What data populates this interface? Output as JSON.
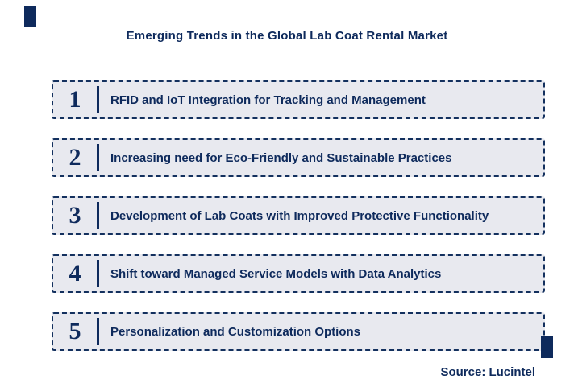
{
  "title": "Emerging Trends in the Global Lab Coat Rental Market",
  "rows": [
    {
      "num": "1",
      "label": "RFID and IoT Integration for Tracking and Management"
    },
    {
      "num": "2",
      "label": "Increasing need for Eco-Friendly and Sustainable Practices"
    },
    {
      "num": "3",
      "label": "Development of Lab Coats with Improved Protective Functionality"
    },
    {
      "num": "4",
      "label": "Shift toward Managed Service Models with Data Analytics"
    },
    {
      "num": "5",
      "label": "Personalization and Customization Options"
    }
  ],
  "source": "Source: Lucintel",
  "colors": {
    "navy": "#0e2a5c",
    "box_fill": "#e8e9ef",
    "border": "#13305e"
  }
}
